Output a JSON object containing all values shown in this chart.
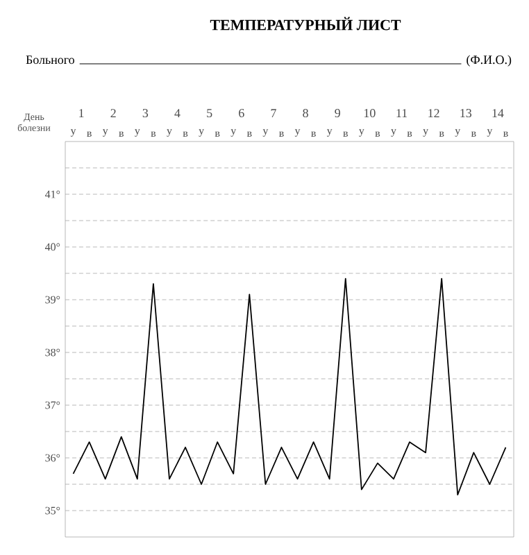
{
  "chart_data": {
    "type": "line",
    "title": "ТЕМПЕРАТУРНЫЙ ЛИСТ",
    "subtitle": "Больного",
    "annotations": [
      "(Ф.И.О.)"
    ],
    "categories": [
      "у",
      "в",
      "у",
      "в",
      "у",
      "в",
      "у",
      "в",
      "у",
      "в",
      "у",
      "в",
      "у",
      "в",
      "у",
      "в",
      "у",
      "в",
      "у",
      "в",
      "у",
      "в",
      "у",
      "в",
      "у",
      "в",
      "у",
      "в"
    ],
    "series": [
      {
        "color": "#000000",
        "values": [
          35.7,
          36.3,
          35.6,
          36.4,
          35.6,
          39.3,
          35.6,
          36.2,
          35.5,
          36.3,
          35.7,
          39.1,
          35.5,
          36.2,
          35.6,
          36.3,
          35.6,
          39.4,
          35.4,
          35.9,
          35.6,
          36.3,
          36.1,
          39.4,
          35.3,
          36.1,
          35.5,
          36.2
        ]
      }
    ],
    "ylim": [
      34.5,
      42
    ],
    "yticks": [
      {
        "value": 35,
        "label": "35°"
      },
      {
        "value": 35.5,
        "label": null
      },
      {
        "value": 36,
        "label": "36°"
      },
      {
        "value": 36.5,
        "label": null
      },
      {
        "value": 37,
        "label": "37°"
      },
      {
        "value": 37.5,
        "label": null
      },
      {
        "value": 38,
        "label": "38°"
      },
      {
        "value": 38.5,
        "label": null
      },
      {
        "value": 39,
        "label": "39°"
      },
      {
        "value": 39.5,
        "label": null
      },
      {
        "value": 40,
        "label": "40°"
      },
      {
        "value": 40.5,
        "label": null
      },
      {
        "value": 41,
        "label": "41°"
      },
      {
        "value": 41.5,
        "label": null
      }
    ],
    "x2label": "День болезни",
    "x2lim": [
      0.5,
      14.5
    ],
    "x2ticks": [
      1,
      2,
      3,
      4,
      5,
      6,
      7,
      8,
      9,
      10,
      11,
      12,
      13,
      14
    ],
    "grid": "y"
  }
}
